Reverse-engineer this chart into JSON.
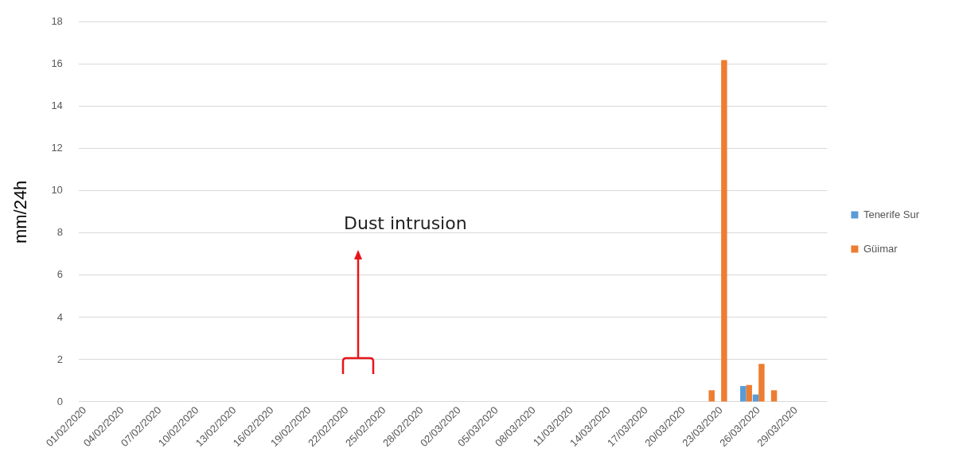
{
  "chart_data": {
    "type": "bar",
    "ylabel": "mm/24h",
    "categories": [
      "01/02/2020",
      null,
      null,
      "04/02/2020",
      null,
      null,
      "07/02/2020",
      null,
      null,
      "10/02/2020",
      null,
      null,
      "13/02/2020",
      null,
      null,
      "16/02/2020",
      null,
      null,
      "19/02/2020",
      null,
      null,
      "22/02/2020",
      null,
      null,
      "25/02/2020",
      null,
      null,
      "28/02/2020",
      null,
      null,
      "02/03/2020",
      null,
      null,
      "05/03/2020",
      null,
      null,
      "08/03/2020",
      null,
      null,
      "11/03/2020",
      null,
      null,
      "14/03/2020",
      null,
      null,
      "17/03/2020",
      null,
      null,
      "20/03/2020",
      null,
      null,
      "23/03/2020",
      null,
      null,
      "26/03/2020",
      null,
      null,
      "29/03/2020",
      null,
      null
    ],
    "series": [
      {
        "name": "Tenerife Sur",
        "color": "#5b9bd5",
        "values": [
          0,
          0,
          0,
          0,
          0,
          0,
          0,
          0,
          0,
          0,
          0,
          0,
          0,
          0,
          0,
          0,
          0,
          0,
          0,
          0,
          0,
          0,
          0,
          0,
          0,
          0,
          0,
          0,
          0,
          0,
          0,
          0,
          0,
          0,
          0,
          0,
          0,
          0,
          0,
          0,
          0,
          0,
          0,
          0,
          0,
          0,
          0,
          0,
          0,
          0,
          0,
          0,
          0,
          0.75,
          0.35,
          0,
          0,
          0,
          0,
          0
        ]
      },
      {
        "name": "Güimar",
        "color": "#ed7d31",
        "values": [
          0,
          0,
          0,
          0,
          0,
          0,
          0,
          0,
          0,
          0,
          0,
          0,
          0,
          0,
          0,
          0,
          0,
          0,
          0,
          0,
          0,
          0,
          0,
          0,
          0,
          0,
          0,
          0,
          0,
          0,
          0,
          0,
          0,
          0,
          0,
          0,
          0,
          0,
          0,
          0,
          0,
          0,
          0,
          0,
          0,
          0,
          0,
          0,
          0,
          0,
          0.55,
          16.2,
          0,
          0.8,
          1.8,
          0.55,
          0,
          0,
          0,
          0
        ]
      }
    ],
    "ylim": [
      0,
      18
    ],
    "yticks": [
      0,
      2,
      4,
      6,
      8,
      10,
      12,
      14,
      16,
      18
    ],
    "grid": "y",
    "legend": "right",
    "annotations": [
      "Dust intrusion"
    ]
  }
}
